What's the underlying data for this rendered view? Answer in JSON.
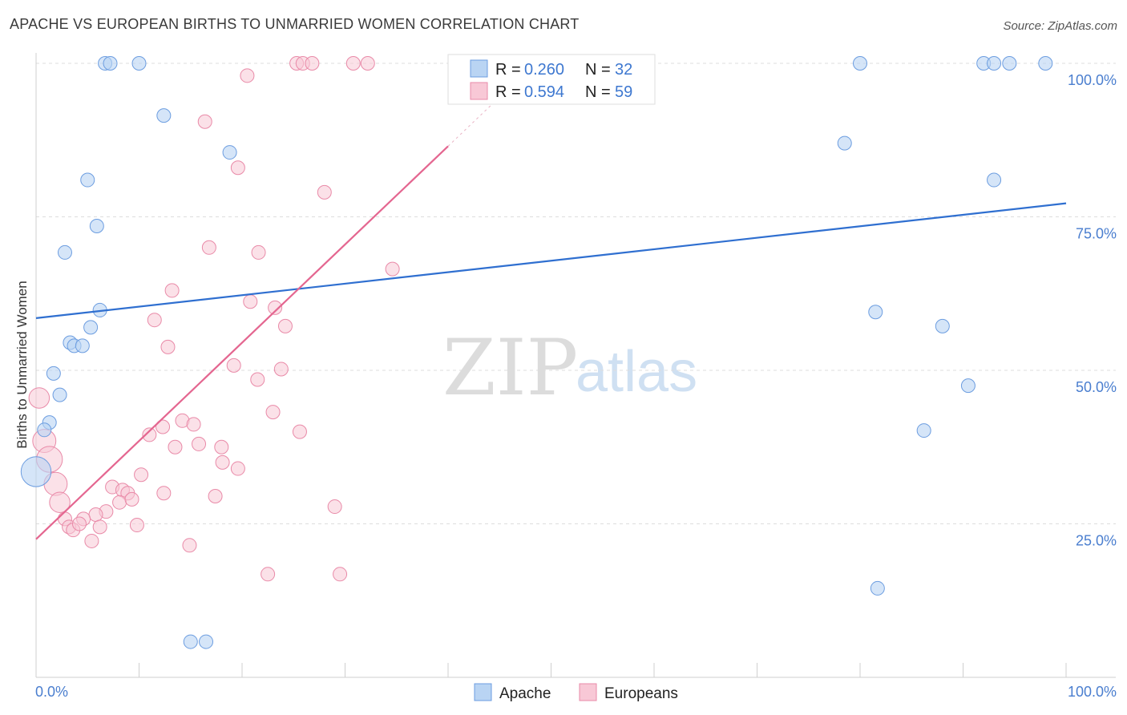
{
  "header": {
    "title": "APACHE VS EUROPEAN BIRTHS TO UNMARRIED WOMEN CORRELATION CHART",
    "source": "Source: ZipAtlas.com"
  },
  "watermark": {
    "zip": "ZIP",
    "atlas": "atlas"
  },
  "colors": {
    "apache_fill": "#b9d4f3",
    "apache_stroke": "#6c9de0",
    "apache_line": "#2f6fd0",
    "europeans_fill": "#f8c8d6",
    "europeans_stroke": "#e98aa8",
    "europeans_line": "#e46690",
    "axis_tick_text": "#4a7ecf",
    "grid": "#dddddd"
  },
  "legend": {
    "apache": {
      "r_label": "R =",
      "r_value": "0.260",
      "n_label": "N =",
      "n_value": "32"
    },
    "europeans": {
      "r_label": "R =",
      "r_value": "0.594",
      "n_label": "N =",
      "n_value": "59"
    }
  },
  "chart_data": {
    "type": "scatter",
    "title": "APACHE VS EUROPEAN BIRTHS TO UNMARRIED WOMEN CORRELATION CHART",
    "xlabel": "",
    "ylabel": "Births to Unmarried Women",
    "xlim": [
      0,
      100
    ],
    "ylim": [
      0,
      102
    ],
    "x_tick_labels": [
      "0.0%",
      "100.0%"
    ],
    "y_ticks": [
      25,
      50,
      75,
      100
    ],
    "y_tick_labels": [
      "25.0%",
      "50.0%",
      "75.0%",
      "100.0%"
    ],
    "series": [
      {
        "name": "Apache",
        "r": 0.26,
        "n": 32,
        "trend": {
          "x": [
            0,
            100
          ],
          "y": [
            58.5,
            77.2
          ]
        },
        "points": [
          {
            "x": 6.7,
            "y": 100,
            "s": 1
          },
          {
            "x": 7.2,
            "y": 100,
            "s": 1
          },
          {
            "x": 10.0,
            "y": 100,
            "s": 1
          },
          {
            "x": 12.4,
            "y": 91.5,
            "s": 1
          },
          {
            "x": 18.8,
            "y": 85.5,
            "s": 1
          },
          {
            "x": 5.0,
            "y": 81.0,
            "s": 1
          },
          {
            "x": 5.9,
            "y": 73.5,
            "s": 1
          },
          {
            "x": 2.8,
            "y": 69.2,
            "s": 1
          },
          {
            "x": 6.2,
            "y": 59.8,
            "s": 1
          },
          {
            "x": 5.3,
            "y": 57.0,
            "s": 1
          },
          {
            "x": 3.3,
            "y": 54.5,
            "s": 1
          },
          {
            "x": 3.7,
            "y": 54.0,
            "s": 1
          },
          {
            "x": 4.5,
            "y": 54.0,
            "s": 1
          },
          {
            "x": 1.7,
            "y": 49.5,
            "s": 1
          },
          {
            "x": 2.3,
            "y": 46.0,
            "s": 1
          },
          {
            "x": 1.3,
            "y": 41.5,
            "s": 1
          },
          {
            "x": 0.8,
            "y": 40.3,
            "s": 1
          },
          {
            "x": 0.0,
            "y": 33.5,
            "s": 2.2
          },
          {
            "x": 15.0,
            "y": 5.8,
            "s": 1
          },
          {
            "x": 16.5,
            "y": 5.8,
            "s": 1
          },
          {
            "x": 80.0,
            "y": 100,
            "s": 1
          },
          {
            "x": 92.0,
            "y": 100,
            "s": 1
          },
          {
            "x": 93.0,
            "y": 100,
            "s": 1
          },
          {
            "x": 94.5,
            "y": 100,
            "s": 1
          },
          {
            "x": 98.0,
            "y": 100,
            "s": 1
          },
          {
            "x": 78.5,
            "y": 87.0,
            "s": 1
          },
          {
            "x": 93.0,
            "y": 81.0,
            "s": 1
          },
          {
            "x": 81.5,
            "y": 59.5,
            "s": 1
          },
          {
            "x": 88.0,
            "y": 57.2,
            "s": 1
          },
          {
            "x": 90.5,
            "y": 47.5,
            "s": 1
          },
          {
            "x": 86.2,
            "y": 40.2,
            "s": 1
          },
          {
            "x": 81.7,
            "y": 14.5,
            "s": 1
          }
        ]
      },
      {
        "name": "Europeans",
        "r": 0.594,
        "n": 59,
        "trend": {
          "x": [
            0,
            40
          ],
          "y": [
            22.5,
            86.5
          ]
        },
        "points": [
          {
            "x": 20.5,
            "y": 98.0,
            "s": 1
          },
          {
            "x": 25.3,
            "y": 100,
            "s": 1
          },
          {
            "x": 25.9,
            "y": 100,
            "s": 1
          },
          {
            "x": 26.8,
            "y": 100,
            "s": 1
          },
          {
            "x": 30.8,
            "y": 100,
            "s": 1
          },
          {
            "x": 32.2,
            "y": 100,
            "s": 1
          },
          {
            "x": 16.4,
            "y": 90.5,
            "s": 1
          },
          {
            "x": 19.6,
            "y": 83.0,
            "s": 1
          },
          {
            "x": 28.0,
            "y": 79.0,
            "s": 1
          },
          {
            "x": 16.8,
            "y": 70.0,
            "s": 1
          },
          {
            "x": 21.6,
            "y": 69.2,
            "s": 1
          },
          {
            "x": 34.6,
            "y": 66.5,
            "s": 1
          },
          {
            "x": 13.2,
            "y": 63.0,
            "s": 1
          },
          {
            "x": 20.8,
            "y": 61.2,
            "s": 1
          },
          {
            "x": 23.2,
            "y": 60.2,
            "s": 1
          },
          {
            "x": 11.5,
            "y": 58.2,
            "s": 1
          },
          {
            "x": 24.2,
            "y": 57.2,
            "s": 1
          },
          {
            "x": 12.8,
            "y": 53.8,
            "s": 1
          },
          {
            "x": 19.2,
            "y": 50.8,
            "s": 1
          },
          {
            "x": 23.8,
            "y": 50.2,
            "s": 1
          },
          {
            "x": 21.5,
            "y": 48.5,
            "s": 1
          },
          {
            "x": 0.3,
            "y": 45.5,
            "s": 1.5
          },
          {
            "x": 23.0,
            "y": 43.2,
            "s": 1
          },
          {
            "x": 14.2,
            "y": 41.8,
            "s": 1
          },
          {
            "x": 15.3,
            "y": 41.2,
            "s": 1
          },
          {
            "x": 12.3,
            "y": 40.8,
            "s": 1
          },
          {
            "x": 11.0,
            "y": 39.5,
            "s": 1
          },
          {
            "x": 25.6,
            "y": 40.0,
            "s": 1
          },
          {
            "x": 0.8,
            "y": 38.5,
            "s": 1.7
          },
          {
            "x": 15.8,
            "y": 38.0,
            "s": 1
          },
          {
            "x": 13.5,
            "y": 37.5,
            "s": 1
          },
          {
            "x": 18.0,
            "y": 37.5,
            "s": 1
          },
          {
            "x": 1.3,
            "y": 35.5,
            "s": 1.9
          },
          {
            "x": 18.1,
            "y": 35.0,
            "s": 1
          },
          {
            "x": 19.6,
            "y": 34.0,
            "s": 1
          },
          {
            "x": 10.2,
            "y": 33.0,
            "s": 1
          },
          {
            "x": 1.9,
            "y": 31.5,
            "s": 1.7
          },
          {
            "x": 7.4,
            "y": 31.0,
            "s": 1
          },
          {
            "x": 8.4,
            "y": 30.5,
            "s": 1
          },
          {
            "x": 8.9,
            "y": 30.0,
            "s": 1
          },
          {
            "x": 12.4,
            "y": 30.0,
            "s": 1
          },
          {
            "x": 17.4,
            "y": 29.5,
            "s": 1
          },
          {
            "x": 2.3,
            "y": 28.5,
            "s": 1.5
          },
          {
            "x": 8.1,
            "y": 28.5,
            "s": 1
          },
          {
            "x": 9.3,
            "y": 29.0,
            "s": 1
          },
          {
            "x": 29.0,
            "y": 27.8,
            "s": 1
          },
          {
            "x": 6.8,
            "y": 27.0,
            "s": 1
          },
          {
            "x": 5.8,
            "y": 26.5,
            "s": 1
          },
          {
            "x": 2.8,
            "y": 25.8,
            "s": 1
          },
          {
            "x": 4.6,
            "y": 25.8,
            "s": 1
          },
          {
            "x": 3.2,
            "y": 24.5,
            "s": 1
          },
          {
            "x": 3.6,
            "y": 24.0,
            "s": 1
          },
          {
            "x": 4.2,
            "y": 25.0,
            "s": 1
          },
          {
            "x": 6.2,
            "y": 24.5,
            "s": 1
          },
          {
            "x": 9.8,
            "y": 24.8,
            "s": 1
          },
          {
            "x": 5.4,
            "y": 22.2,
            "s": 1
          },
          {
            "x": 14.9,
            "y": 21.5,
            "s": 1
          },
          {
            "x": 22.5,
            "y": 16.8,
            "s": 1
          },
          {
            "x": 29.5,
            "y": 16.8,
            "s": 1
          }
        ]
      }
    ]
  },
  "bottom_legend": {
    "apache": "Apache",
    "europeans": "Europeans"
  }
}
